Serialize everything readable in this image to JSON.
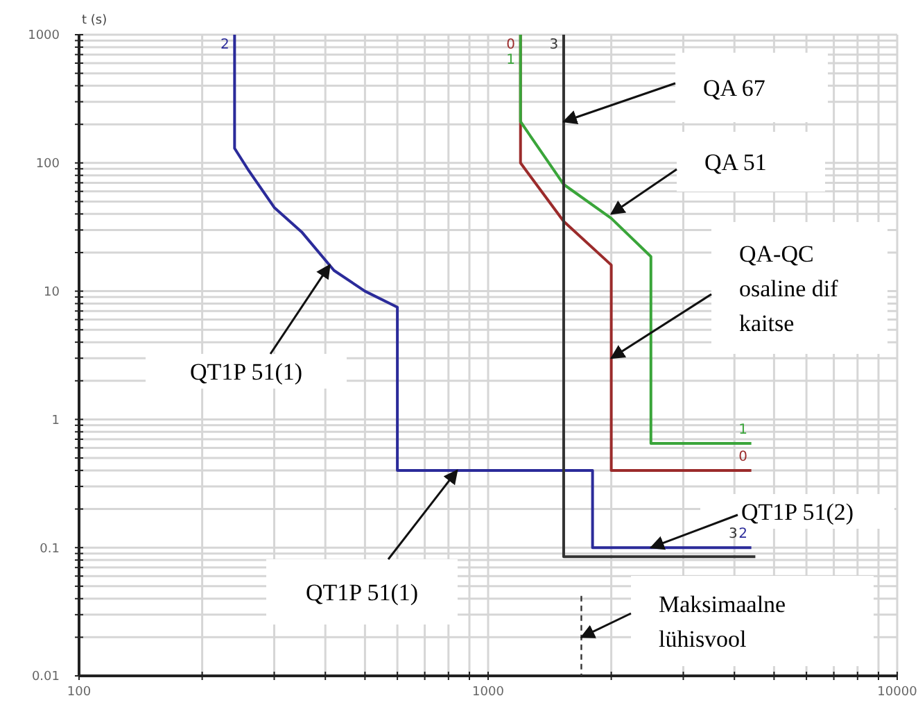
{
  "chart_data": {
    "type": "line",
    "ylabel": "t (s)",
    "log": "xy",
    "grid": true,
    "xlim": [
      100,
      10000
    ],
    "ylim": [
      0.01,
      1000
    ],
    "xticks": [
      100,
      1000,
      10000
    ],
    "yticks": [
      0.01,
      0.1,
      1,
      10,
      100,
      1000
    ],
    "series": [
      {
        "name": "2",
        "color": "#2b2b9a",
        "x": [
          240,
          240,
          260,
          300,
          350,
          420,
          500,
          600,
          600,
          1800,
          1800,
          4400
        ],
        "values": [
          1000,
          130,
          87,
          45,
          29,
          14.5,
          10,
          7.5,
          0.4,
          0.4,
          0.1,
          0.1
        ]
      },
      {
        "name": "0",
        "color": "#9b2b2b",
        "x": [
          1200,
          1200,
          1200,
          1530,
          2000,
          2000,
          4400
        ],
        "values": [
          1000,
          210,
          100,
          35,
          16,
          0.4,
          0.4
        ]
      },
      {
        "name": "1",
        "color": "#3aa53a",
        "x": [
          1200,
          1200,
          1530,
          2000,
          2500,
          2500,
          4400
        ],
        "values": [
          1000,
          210,
          68,
          37,
          18.6,
          0.65,
          0.65
        ]
      },
      {
        "name": "3",
        "color": "#333333",
        "x": [
          1530,
          1530,
          4500
        ],
        "values": [
          1000,
          0.085,
          0.085
        ]
      },
      {
        "color": "#333333",
        "line_style": "dashed",
        "x": [
          1690,
          1690
        ],
        "values": [
          0.042,
          0.01
        ]
      }
    ],
    "annotations": [
      {
        "text": "QA 67",
        "x": 1530,
        "y": 210
      },
      {
        "text": "QA 51",
        "x": 2000,
        "y": 40
      },
      {
        "text": "QA-QC osaline dif kaitse",
        "x": 2000,
        "y": 3
      },
      {
        "text": "QT1P 51(1)",
        "x": 410,
        "y": 16
      },
      {
        "text": "QT1P 51(1)",
        "x": 840,
        "y": 0.4
      },
      {
        "text": "QT1P 51(2)",
        "x": 2500,
        "y": 0.1
      },
      {
        "text": "Maksimaalne lühisvool",
        "x": 1690,
        "y": 0.02
      }
    ]
  }
}
